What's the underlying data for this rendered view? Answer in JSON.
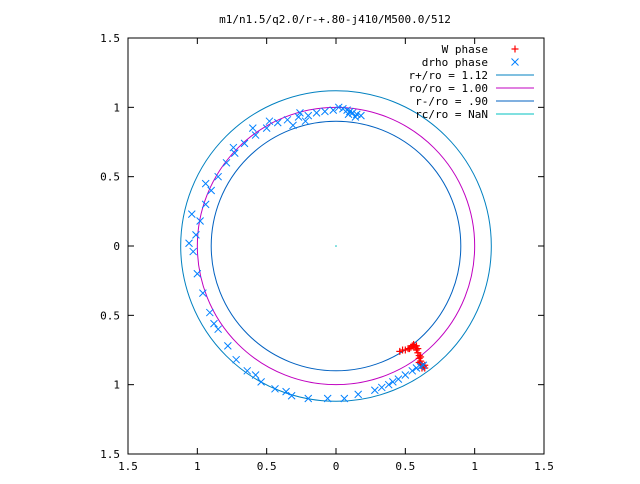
{
  "chart_data": {
    "type": "scatter",
    "title": "m1/n1.5/q2.0/r-+.80-j410/M500.0/512",
    "xlabel": "",
    "ylabel": "",
    "xlim": [
      -1.5,
      1.5
    ],
    "ylim": [
      -1.5,
      1.5
    ],
    "x_ticks": [
      -1.5,
      -1,
      -0.5,
      0,
      0.5,
      1,
      1.5
    ],
    "y_ticks": [
      -1.5,
      -1,
      -0.5,
      0,
      0.5,
      1,
      1.5
    ],
    "x_tick_labels": [
      "1.5",
      "1",
      "0.5",
      "0",
      "0.5",
      "1",
      "1.5"
    ],
    "y_tick_labels": [
      "1.5",
      "1",
      "0.5",
      "0",
      "0.5",
      "1",
      "1.5"
    ],
    "grid": false,
    "legend_position": "top-right",
    "series": [
      {
        "name": "W phase",
        "marker": "+",
        "color": "#ff0000",
        "points": [
          [
            0.46,
            -0.76
          ],
          [
            0.48,
            -0.75
          ],
          [
            0.5,
            -0.75
          ],
          [
            0.52,
            -0.74
          ],
          [
            0.54,
            -0.73
          ],
          [
            0.56,
            -0.72
          ],
          [
            0.57,
            -0.73
          ],
          [
            0.58,
            -0.75
          ],
          [
            0.59,
            -0.77
          ],
          [
            0.6,
            -0.79
          ],
          [
            0.6,
            -0.81
          ],
          [
            0.61,
            -0.83
          ],
          [
            0.61,
            -0.85
          ],
          [
            0.62,
            -0.86
          ],
          [
            0.63,
            -0.87
          ],
          [
            0.64,
            -0.88
          ],
          [
            0.61,
            -0.8
          ],
          [
            0.59,
            -0.74
          ],
          [
            0.58,
            -0.72
          ],
          [
            0.56,
            -0.71
          ],
          [
            0.53,
            -0.74
          ],
          [
            0.55,
            -0.72
          ],
          [
            0.6,
            -0.84
          ],
          [
            0.62,
            -0.88
          ],
          [
            0.64,
            -0.86
          ]
        ]
      },
      {
        "name": "drho phase",
        "marker": "x",
        "color": "#0080ff",
        "points": [
          [
            0.08,
            0.98
          ],
          [
            0.12,
            0.96
          ],
          [
            0.15,
            0.95
          ],
          [
            0.14,
            0.93
          ],
          [
            0.1,
            0.97
          ],
          [
            0.05,
            0.99
          ],
          [
            -0.02,
            0.98
          ],
          [
            -0.08,
            0.97
          ],
          [
            -0.14,
            0.96
          ],
          [
            -0.2,
            0.94
          ],
          [
            -0.27,
            0.93
          ],
          [
            -0.35,
            0.91
          ],
          [
            -0.42,
            0.89
          ],
          [
            -0.5,
            0.85
          ],
          [
            -0.58,
            0.8
          ],
          [
            -0.66,
            0.74
          ],
          [
            -0.73,
            0.67
          ],
          [
            -0.79,
            0.6
          ],
          [
            -0.85,
            0.5
          ],
          [
            -0.9,
            0.4
          ],
          [
            -0.94,
            0.3
          ],
          [
            -0.98,
            0.18
          ],
          [
            -1.01,
            0.08
          ],
          [
            -1.03,
            -0.04
          ],
          [
            -1.0,
            -0.2
          ],
          [
            -0.96,
            -0.34
          ],
          [
            -0.91,
            -0.48
          ],
          [
            -0.85,
            -0.6
          ],
          [
            -0.78,
            -0.72
          ],
          [
            -0.72,
            -0.82
          ],
          [
            -0.64,
            -0.9
          ],
          [
            -0.54,
            -0.98
          ],
          [
            -0.44,
            -1.03
          ],
          [
            -0.32,
            -1.08
          ],
          [
            -0.2,
            -1.1
          ],
          [
            -0.06,
            -1.1
          ],
          [
            0.06,
            -1.1
          ],
          [
            0.16,
            -1.07
          ],
          [
            0.28,
            -1.04
          ],
          [
            0.38,
            -1.0
          ],
          [
            0.45,
            -0.96
          ],
          [
            0.5,
            -0.93
          ],
          [
            0.55,
            -0.9
          ],
          [
            0.58,
            -0.88
          ],
          [
            0.61,
            -0.87
          ],
          [
            0.63,
            -0.86
          ],
          [
            -1.04,
            0.23
          ],
          [
            -1.06,
            0.02
          ],
          [
            -0.94,
            0.45
          ],
          [
            -0.6,
            0.85
          ],
          [
            -0.74,
            0.71
          ],
          [
            -0.48,
            0.9
          ],
          [
            -0.88,
            -0.56
          ],
          [
            -0.26,
            0.96
          ],
          [
            0.02,
            1.0
          ],
          [
            0.18,
            0.94
          ],
          [
            0.09,
            0.95
          ],
          [
            -0.22,
            0.9
          ],
          [
            -0.31,
            0.87
          ],
          [
            -0.58,
            -0.93
          ],
          [
            -0.36,
            -1.05
          ],
          [
            0.33,
            -1.02
          ],
          [
            0.41,
            -0.98
          ]
        ]
      }
    ],
    "reference_circles": [
      {
        "name": "r+/ro = 1.12",
        "radius": 1.12,
        "color": "#0080c0"
      },
      {
        "name": "ro/ro = 1.00",
        "radius": 1.0,
        "color": "#c000c0"
      },
      {
        "name": "r-/ro = .90",
        "radius": 0.9,
        "color": "#0060c0"
      },
      {
        "name": "rc/ro = NaN",
        "radius": null,
        "color": "#00c0c0"
      }
    ],
    "center_marker": [
      0,
      0
    ]
  }
}
